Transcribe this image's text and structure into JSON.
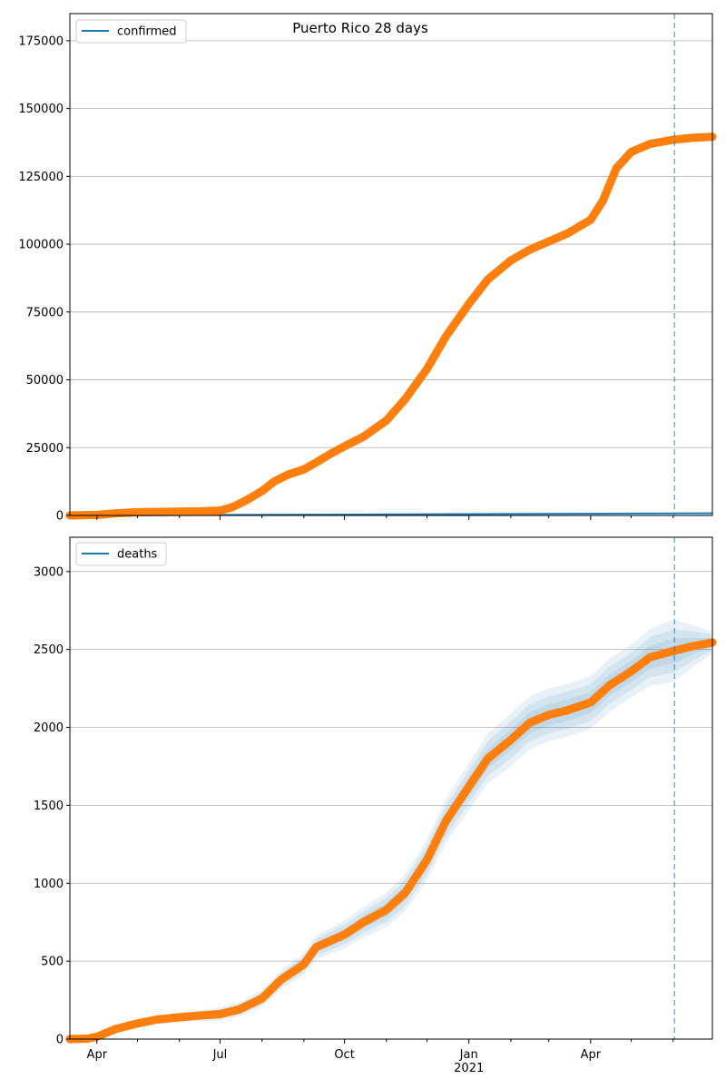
{
  "colors": {
    "observed": "#ff7f0e",
    "model": "#1f77b4",
    "band": "#1f77b4",
    "vline": "#1f77b4"
  },
  "chart_data": [
    {
      "type": "line",
      "title": "Puerto Rico 28 days",
      "legend": [
        "confirmed"
      ],
      "legend_position": "top-left",
      "grid": "y",
      "xlim": [
        "2020-03-12",
        "2021-06-30"
      ],
      "ylim": [
        0,
        185000
      ],
      "yticks": [
        0,
        25000,
        50000,
        75000,
        100000,
        125000,
        150000,
        175000
      ],
      "ytick_labels": [
        "0",
        "25000",
        "50000",
        "75000",
        "100000",
        "125000",
        "150000",
        "175000"
      ],
      "vline_date": "2021-06-02",
      "model_line": [
        [
          "2020-03-12",
          0
        ],
        [
          "2021-06-30",
          800
        ]
      ],
      "observed": [
        [
          "2020-03-12",
          0
        ],
        [
          "2020-04-01",
          200
        ],
        [
          "2020-04-15",
          800
        ],
        [
          "2020-05-01",
          1200
        ],
        [
          "2020-05-15",
          1300
        ],
        [
          "2020-06-01",
          1400
        ],
        [
          "2020-06-15",
          1500
        ],
        [
          "2020-07-01",
          1800
        ],
        [
          "2020-07-10",
          3000
        ],
        [
          "2020-07-20",
          5500
        ],
        [
          "2020-08-01",
          9000
        ],
        [
          "2020-08-10",
          12500
        ],
        [
          "2020-08-20",
          15000
        ],
        [
          "2020-09-01",
          17000
        ],
        [
          "2020-09-10",
          19500
        ],
        [
          "2020-09-20",
          22500
        ],
        [
          "2020-10-01",
          25500
        ],
        [
          "2020-10-15",
          29000
        ],
        [
          "2020-11-01",
          35000
        ],
        [
          "2020-11-15",
          43000
        ],
        [
          "2020-12-01",
          54000
        ],
        [
          "2020-12-15",
          66000
        ],
        [
          "2021-01-01",
          78000
        ],
        [
          "2021-01-15",
          87000
        ],
        [
          "2021-02-01",
          94000
        ],
        [
          "2021-02-15",
          98000
        ],
        [
          "2021-03-01",
          101000
        ],
        [
          "2021-03-15",
          104000
        ],
        [
          "2021-04-01",
          109000
        ],
        [
          "2021-04-10",
          116000
        ],
        [
          "2021-04-20",
          128000
        ],
        [
          "2021-05-01",
          134000
        ],
        [
          "2021-05-15",
          137000
        ],
        [
          "2021-06-01",
          138500
        ],
        [
          "2021-06-15",
          139200
        ],
        [
          "2021-06-30",
          139600
        ]
      ]
    },
    {
      "type": "line",
      "legend": [
        "deaths"
      ],
      "legend_position": "top-left",
      "grid": "y",
      "xlim": [
        "2020-03-12",
        "2021-06-30"
      ],
      "ylim": [
        0,
        3220
      ],
      "yticks": [
        0,
        500,
        1000,
        1500,
        2000,
        2500,
        3000
      ],
      "ytick_labels": [
        "0",
        "500",
        "1000",
        "1500",
        "2000",
        "2500",
        "3000"
      ],
      "vline_date": "2021-06-02",
      "xticks": [
        {
          "date": "2020-04-01",
          "label": "Apr"
        },
        {
          "date": "2020-07-01",
          "label": "Jul"
        },
        {
          "date": "2020-10-01",
          "label": "Oct"
        },
        {
          "date": "2021-01-01",
          "label": "Jan\n2021"
        },
        {
          "date": "2021-04-01",
          "label": "Apr"
        }
      ],
      "observed": [
        [
          "2020-03-12",
          0
        ],
        [
          "2020-03-25",
          3
        ],
        [
          "2020-04-01",
          15
        ],
        [
          "2020-04-15",
          65
        ],
        [
          "2020-05-01",
          100
        ],
        [
          "2020-05-15",
          125
        ],
        [
          "2020-06-01",
          140
        ],
        [
          "2020-06-15",
          150
        ],
        [
          "2020-07-01",
          160
        ],
        [
          "2020-07-15",
          190
        ],
        [
          "2020-08-01",
          260
        ],
        [
          "2020-08-15",
          380
        ],
        [
          "2020-09-01",
          480
        ],
        [
          "2020-09-10",
          590
        ],
        [
          "2020-10-01",
          670
        ],
        [
          "2020-10-15",
          750
        ],
        [
          "2020-11-01",
          830
        ],
        [
          "2020-11-15",
          940
        ],
        [
          "2020-12-01",
          1150
        ],
        [
          "2020-12-15",
          1400
        ],
        [
          "2021-01-01",
          1620
        ],
        [
          "2021-01-15",
          1800
        ],
        [
          "2021-02-01",
          1920
        ],
        [
          "2021-02-15",
          2030
        ],
        [
          "2021-03-01",
          2080
        ],
        [
          "2021-03-15",
          2110
        ],
        [
          "2021-04-01",
          2160
        ],
        [
          "2021-04-15",
          2270
        ],
        [
          "2021-05-01",
          2360
        ],
        [
          "2021-05-15",
          2450
        ],
        [
          "2021-06-01",
          2490
        ],
        [
          "2021-06-15",
          2520
        ],
        [
          "2021-06-30",
          2545
        ]
      ],
      "band_widths": [
        [
          "2020-03-12",
          10
        ],
        [
          "2020-06-01",
          30
        ],
        [
          "2020-08-15",
          60
        ],
        [
          "2020-10-01",
          90
        ],
        [
          "2020-11-01",
          110
        ],
        [
          "2020-12-15",
          140
        ],
        [
          "2021-02-01",
          170
        ],
        [
          "2021-03-15",
          170
        ],
        [
          "2021-05-01",
          170
        ],
        [
          "2021-06-01",
          200
        ],
        [
          "2021-06-30",
          70
        ]
      ]
    }
  ]
}
